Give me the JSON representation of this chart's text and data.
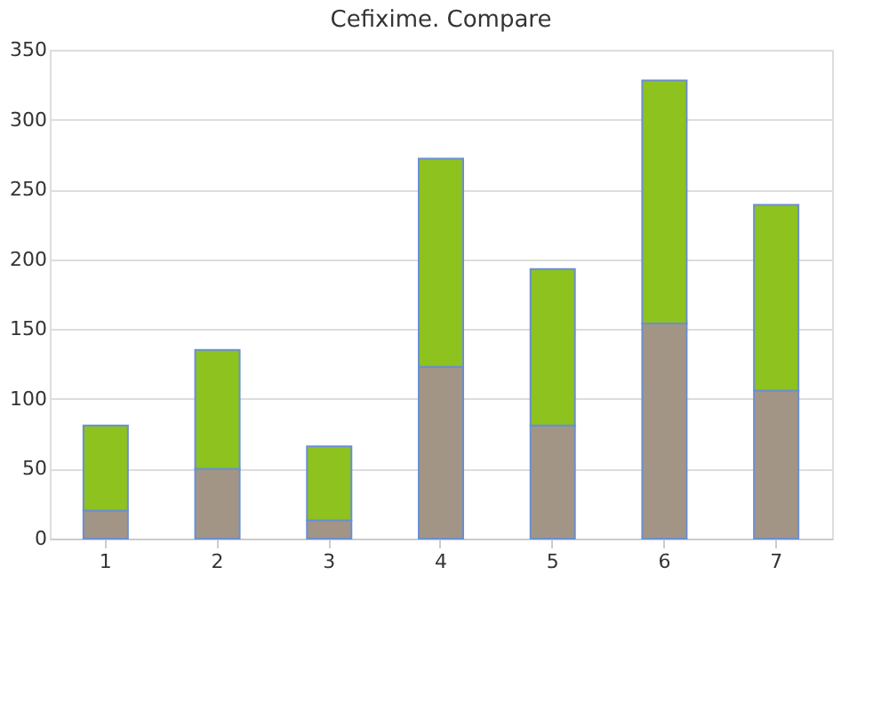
{
  "chart_data": {
    "type": "bar",
    "title": "Cefixime. Compare",
    "stacked": true,
    "categories": [
      "1",
      "2",
      "3",
      "4",
      "5",
      "6",
      "7"
    ],
    "series": [
      {
        "color": "#a39585",
        "values": [
          20,
          50,
          13,
          123,
          81,
          154,
          106
        ]
      },
      {
        "color": "#8ec21e",
        "values": [
          61,
          85,
          53,
          149,
          112,
          174,
          133
        ]
      }
    ],
    "ylim": [
      0,
      350
    ],
    "yticks": [
      0,
      50,
      100,
      150,
      200,
      250,
      300,
      350
    ],
    "grid": "y"
  }
}
